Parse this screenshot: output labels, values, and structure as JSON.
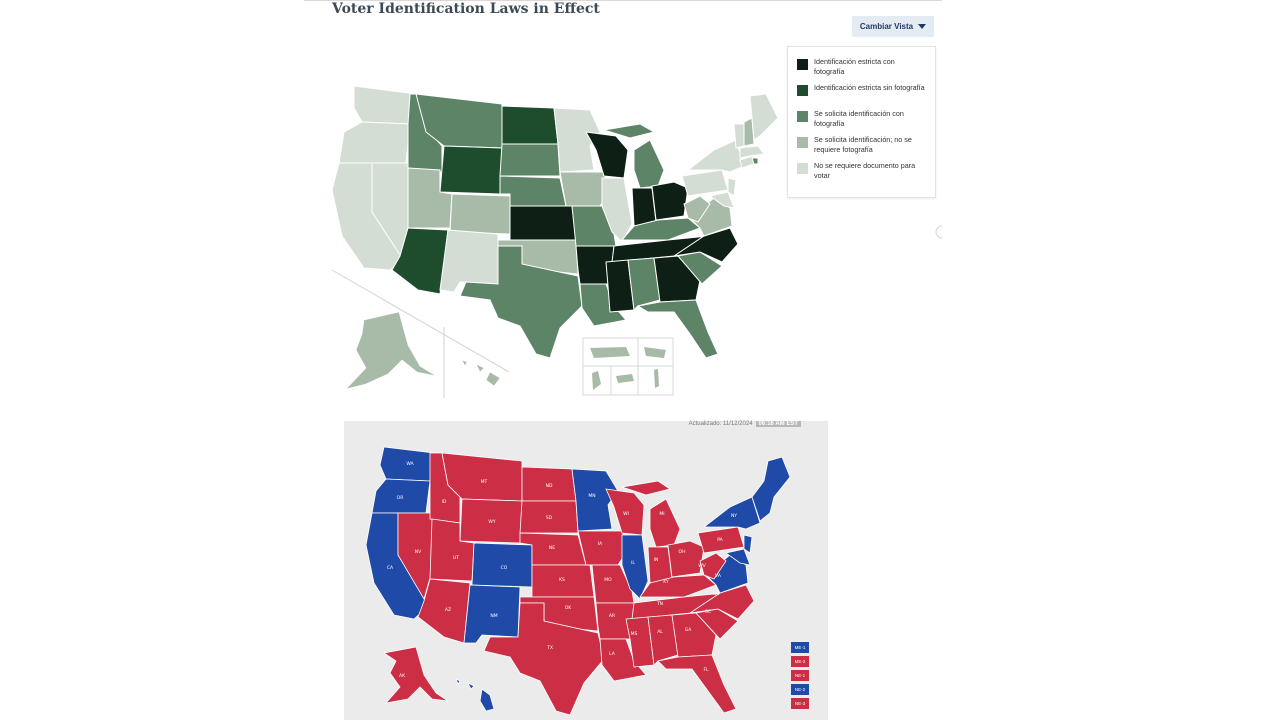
{
  "voter_map": {
    "title": "Voter Identification Laws in Effect",
    "view_button_label": "Cambiar Vista",
    "legend": [
      {
        "label": "Identificación estricta con fotografía",
        "color": "#0e2015"
      },
      {
        "label": "Identificación estricta sin fotografía",
        "color": "#1e4d2e"
      },
      {
        "label": "Se solicita identificación con fotografía",
        "color": "#5e8468"
      },
      {
        "label": "Se solicita identificación; no se requiere fotografía",
        "color": "#a8bba9"
      },
      {
        "label": "No se requiere documento para votar",
        "color": "#d4ddd4"
      }
    ]
  },
  "election_map": {
    "updated_label": "Actualizado: 11/12/2024",
    "updated_time": "06:16 AM EST",
    "colors": {
      "dem": "#1f4aa8",
      "rep": "#cc2f45",
      "background": "#ebebeb"
    },
    "states": [
      "WA",
      "OR",
      "ID",
      "MT",
      "ND",
      "SD",
      "MN",
      "WY",
      "NE",
      "IA",
      "WI",
      "MI",
      "NV",
      "UT",
      "CO",
      "KS",
      "MO",
      "IL",
      "IN",
      "OH",
      "PA",
      "NY",
      "CA",
      "AZ",
      "NM",
      "OK",
      "AR",
      "KY",
      "TN",
      "WV",
      "VA",
      "NC",
      "SC",
      "GA",
      "AL",
      "MS",
      "LA",
      "TX",
      "FL",
      "AK"
    ],
    "district_boxes": [
      {
        "label": "ME-1",
        "party": "dem"
      },
      {
        "label": "ME-2",
        "party": "rep"
      },
      {
        "label": "NE-1",
        "party": "rep"
      },
      {
        "label": "NE-2",
        "party": "dem"
      },
      {
        "label": "NE-3",
        "party": "rep"
      }
    ]
  }
}
